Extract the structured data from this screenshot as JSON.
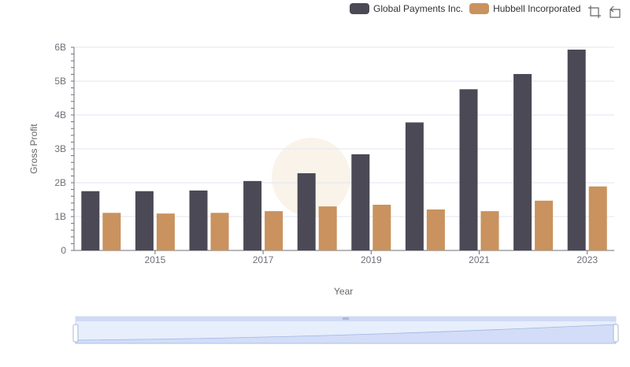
{
  "legend": [
    {
      "name": "Global Payments Inc.",
      "color": "#4a4955"
    },
    {
      "name": "Hubbell Incorporated",
      "color": "#c9925e"
    }
  ],
  "toolbox": {
    "zoom_icon": "zoom-area-icon",
    "restore_icon": "restore-icon"
  },
  "chart_data": {
    "type": "bar",
    "title": "",
    "xlabel": "Year",
    "ylabel": "Gross Profit",
    "categories": [
      "2014",
      "2015",
      "2016",
      "2017",
      "2018",
      "2019",
      "2020",
      "2021",
      "2022",
      "2023"
    ],
    "x_tick_labels": [
      "2015",
      "2017",
      "2019",
      "2021",
      "2023"
    ],
    "y_ticks": [
      "0",
      "1B",
      "2B",
      "3B",
      "4B",
      "5B",
      "6B"
    ],
    "ylim": [
      0,
      6000000000
    ],
    "grid": true,
    "legend_position": "top-right",
    "series": [
      {
        "name": "Global Payments Inc.",
        "color": "#4a4955",
        "values": [
          1750000000,
          1750000000,
          1770000000,
          2050000000,
          2280000000,
          2840000000,
          3780000000,
          4760000000,
          5210000000,
          5930000000
        ]
      },
      {
        "name": "Hubbell Incorporated",
        "color": "#c9925e",
        "values": [
          1110000000,
          1090000000,
          1110000000,
          1160000000,
          1300000000,
          1350000000,
          1210000000,
          1160000000,
          1470000000,
          1890000000
        ]
      }
    ]
  }
}
